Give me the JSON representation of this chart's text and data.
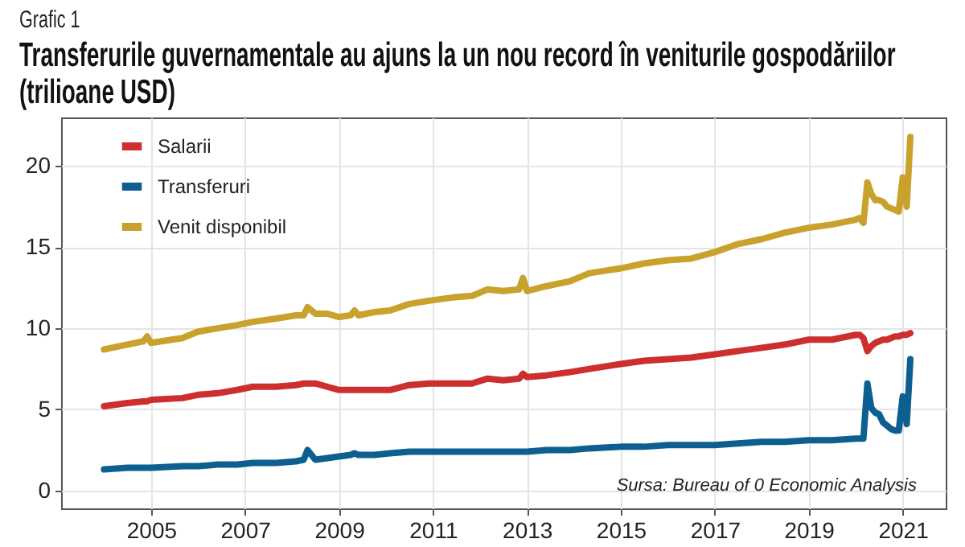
{
  "chart_data": {
    "type": "line",
    "subtitle": "Grafic 1",
    "title": "Transferurile guvernamentale au ajuns la un nou record în veniturile gospodăriilor (trilioane USD)",
    "annotations": [
      "Sursa: Bureau of 0 Economic Analysis"
    ],
    "x": [
      "2004-01",
      "2004-07",
      "2004-11",
      "2004-12",
      "2005-01",
      "2005-09",
      "2006-01",
      "2006-06",
      "2006-11",
      "2007-03",
      "2007-09",
      "2008-02",
      "2008-04",
      "2008-05",
      "2008-07",
      "2008-10",
      "2009-01",
      "2009-04",
      "2009-05",
      "2009-06",
      "2009-10",
      "2010-02",
      "2010-07",
      "2010-12",
      "2011-06",
      "2011-11",
      "2012-03",
      "2012-07",
      "2012-11",
      "2012-12",
      "2013-01",
      "2013-06",
      "2013-12",
      "2014-05",
      "2015-01",
      "2015-07",
      "2016-01",
      "2016-07",
      "2017-01",
      "2017-07",
      "2018-01",
      "2018-07",
      "2019-01",
      "2019-07",
      "2020-01",
      "2020-02",
      "2020-03",
      "2020-04",
      "2020-05",
      "2020-06",
      "2020-07",
      "2020-08",
      "2020-09",
      "2020-10",
      "2020-11",
      "2020-12",
      "2021-01",
      "2021-02",
      "2021-03"
    ],
    "series": [
      {
        "name": "Salarii",
        "color": "#cd2f2f",
        "values": [
          5.2,
          5.4,
          5.5,
          5.5,
          5.6,
          5.7,
          5.9,
          6.0,
          6.2,
          6.4,
          6.4,
          6.5,
          6.6,
          6.6,
          6.6,
          6.4,
          6.2,
          6.2,
          6.2,
          6.2,
          6.2,
          6.2,
          6.5,
          6.6,
          6.6,
          6.6,
          6.9,
          6.8,
          6.9,
          7.2,
          7.0,
          7.1,
          7.3,
          7.5,
          7.8,
          8.0,
          8.1,
          8.2,
          8.4,
          8.6,
          8.8,
          9.0,
          9.3,
          9.3,
          9.6,
          9.6,
          9.4,
          8.6,
          8.9,
          9.1,
          9.2,
          9.3,
          9.3,
          9.4,
          9.5,
          9.5,
          9.6,
          9.6,
          9.7
        ]
      },
      {
        "name": "Transferuri",
        "color": "#0d5f8f",
        "values": [
          1.3,
          1.4,
          1.4,
          1.4,
          1.4,
          1.5,
          1.5,
          1.6,
          1.6,
          1.7,
          1.7,
          1.8,
          1.9,
          2.5,
          1.9,
          2.0,
          2.1,
          2.2,
          2.3,
          2.2,
          2.2,
          2.3,
          2.4,
          2.4,
          2.4,
          2.4,
          2.4,
          2.4,
          2.4,
          2.4,
          2.4,
          2.5,
          2.5,
          2.6,
          2.7,
          2.7,
          2.8,
          2.8,
          2.8,
          2.9,
          3.0,
          3.0,
          3.1,
          3.1,
          3.2,
          3.2,
          3.2,
          6.6,
          5.1,
          4.8,
          4.7,
          4.2,
          4.0,
          3.8,
          3.7,
          3.7,
          5.8,
          4.1,
          8.1
        ]
      },
      {
        "name": "Venit disponibil",
        "color": "#c8a22c",
        "values": [
          8.7,
          9.0,
          9.2,
          9.5,
          9.1,
          9.4,
          9.8,
          10.0,
          10.2,
          10.4,
          10.6,
          10.8,
          10.8,
          11.3,
          10.9,
          10.9,
          10.7,
          10.8,
          11.1,
          10.8,
          11.0,
          11.1,
          11.5,
          11.7,
          11.9,
          12.0,
          12.4,
          12.3,
          12.4,
          13.1,
          12.3,
          12.6,
          12.9,
          13.4,
          13.7,
          14.0,
          14.2,
          14.3,
          14.7,
          15.2,
          15.5,
          15.9,
          16.2,
          16.4,
          16.7,
          16.8,
          16.5,
          19.0,
          18.3,
          17.9,
          17.9,
          17.8,
          17.5,
          17.4,
          17.3,
          17.2,
          19.3,
          17.5,
          21.8
        ]
      }
    ],
    "xlim": [
      "2003-02",
      "2021-12"
    ],
    "xticks": [
      "2005",
      "2007",
      "2009",
      "2011",
      "2013",
      "2015",
      "2017",
      "2019",
      "2021"
    ],
    "ylim": [
      -1.1,
      23.0
    ],
    "yticks": [
      0,
      5,
      10,
      15,
      20
    ],
    "grid": true,
    "legend": "top left"
  }
}
